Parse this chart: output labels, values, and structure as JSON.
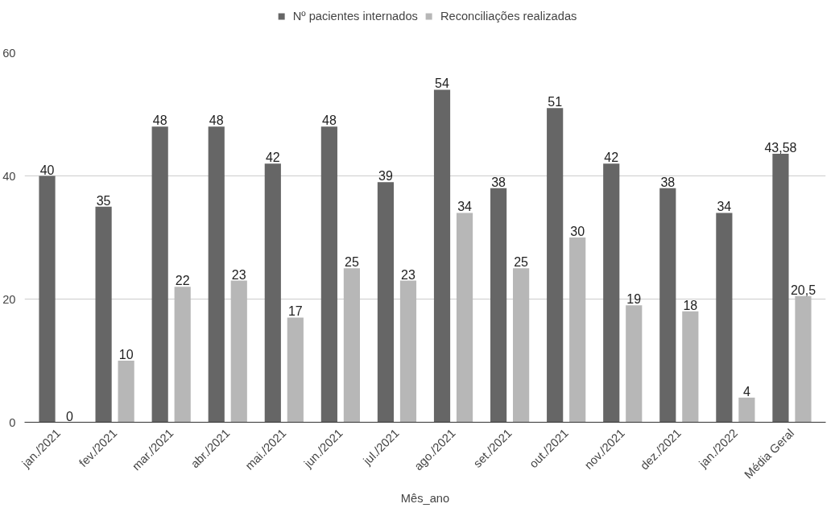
{
  "chart_data": {
    "type": "bar",
    "xlabel": "Mês_ano",
    "categories": [
      "jan./2021",
      "fev./2021",
      "mar./2021",
      "abr./2021",
      "mai./2021",
      "jun./2021",
      "jul./2021",
      "ago./2021",
      "set./2021",
      "out./2021",
      "nov./2021",
      "dez./2021",
      "jan./2022",
      "Média Geral"
    ],
    "series": [
      {
        "name": "Nº pacientes internados",
        "color": "#666666",
        "values": [
          40,
          35,
          48,
          48,
          42,
          48,
          39,
          54,
          38,
          51,
          42,
          38,
          34,
          43.58
        ],
        "value_labels": [
          "40",
          "35",
          "48",
          "48",
          "42",
          "48",
          "39",
          "54",
          "38",
          "51",
          "42",
          "38",
          "34",
          "43,58"
        ]
      },
      {
        "name": "Reconciliações realizadas",
        "color": "#b7b7b7",
        "values": [
          0,
          10,
          22,
          23,
          17,
          25,
          23,
          34,
          25,
          30,
          19,
          18,
          4,
          20.5
        ],
        "value_labels": [
          "0",
          "10",
          "22",
          "23",
          "17",
          "25",
          "23",
          "34",
          "25",
          "30",
          "19",
          "18",
          "4",
          "20,5"
        ]
      }
    ],
    "ylim": [
      0,
      60
    ],
    "yticks": [
      0,
      20,
      40,
      60
    ],
    "grid": "y",
    "legend": "top"
  }
}
